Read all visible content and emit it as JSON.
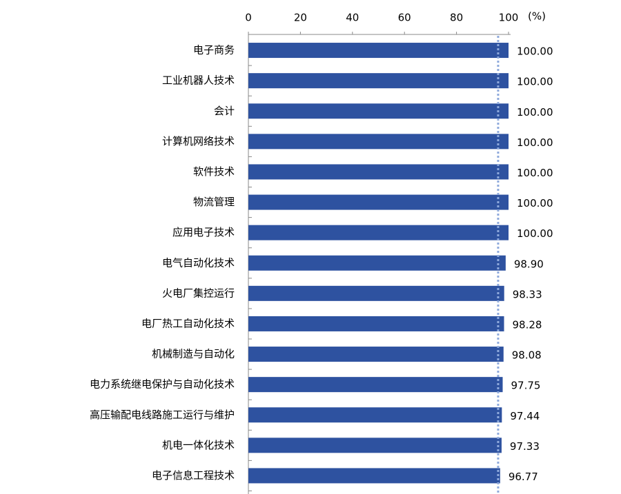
{
  "chart_data": {
    "type": "hbar",
    "categories": [
      "电子商务",
      "工业机器人技术",
      "会计",
      "计算机网络技术",
      "软件技术",
      "物流管理",
      "应用电子技术",
      "电气自动化技术",
      "火电厂集控运行",
      "电厂热工自动化技术",
      "机械制造与自动化",
      "电力系统继电保护与自动化技术",
      "高压输配电线路施工运行与维护",
      "机电一体化技术",
      "电子信息工程技术"
    ],
    "values": [
      100,
      100,
      100,
      100,
      100,
      100,
      100,
      98.9,
      98.33,
      98.28,
      98.08,
      97.75,
      97.44,
      97.33,
      96.77
    ],
    "value_labels": [
      "100.00",
      "100.00",
      "100.00",
      "100.00",
      "100.00",
      "100.00",
      "100.00",
      "98.90",
      "98.33",
      "98.28",
      "98.08",
      "97.75",
      "97.44",
      "97.33",
      "96.77"
    ],
    "color": "#2e52a0",
    "xlim": [
      0,
      100
    ],
    "xticks": [
      0,
      20,
      40,
      60,
      80,
      100
    ],
    "x_unit_label": "(%)",
    "reference_line": 96,
    "reference_color": "#8faadc",
    "grid": false
  }
}
